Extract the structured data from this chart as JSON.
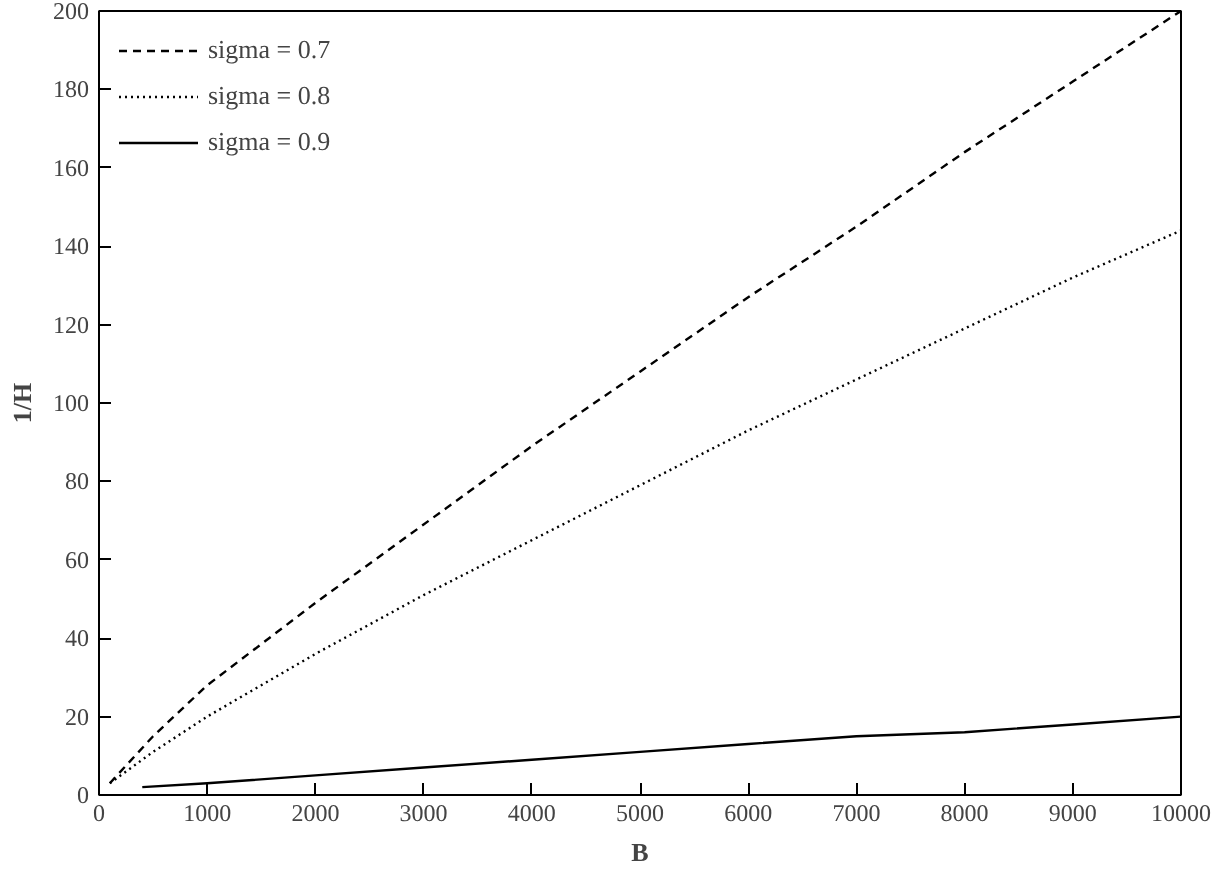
{
  "chart_data": {
    "type": "line",
    "xlabel": "B",
    "ylabel": "1/H",
    "xlim": [
      0,
      10000
    ],
    "ylim": [
      0,
      200
    ],
    "xticks": [
      0,
      1000,
      2000,
      3000,
      4000,
      5000,
      6000,
      7000,
      8000,
      9000,
      10000
    ],
    "yticks": [
      0,
      20,
      40,
      60,
      80,
      100,
      120,
      140,
      160,
      180,
      200
    ],
    "grid": false,
    "legend": "top left",
    "marker": "none",
    "series": [
      {
        "name": "sigma = 0.7",
        "color": "#000000",
        "line_style": "dashed",
        "x": [
          100,
          500,
          1000,
          2000,
          3000,
          4000,
          5000,
          6000,
          7000,
          8000,
          9000,
          10000
        ],
        "values": [
          3,
          15,
          28,
          49,
          69,
          89,
          108,
          127,
          145,
          164,
          182,
          200
        ]
      },
      {
        "name": "sigma = 0.8",
        "color": "#000000",
        "line_style": "dotted",
        "x": [
          100,
          500,
          1000,
          2000,
          3000,
          4000,
          5000,
          6000,
          7000,
          8000,
          9000,
          10000
        ],
        "values": [
          3,
          11,
          20,
          36,
          51,
          65,
          79,
          93,
          106,
          119,
          132,
          144
        ]
      },
      {
        "name": "sigma = 0.9",
        "color": "#000000",
        "line_style": "solid",
        "x": [
          400,
          1000,
          2000,
          3000,
          4000,
          5000,
          6000,
          7000,
          8000,
          9000,
          10000
        ],
        "values": [
          2,
          3,
          5,
          7,
          9,
          11,
          13,
          15,
          16,
          18,
          20
        ]
      }
    ]
  }
}
